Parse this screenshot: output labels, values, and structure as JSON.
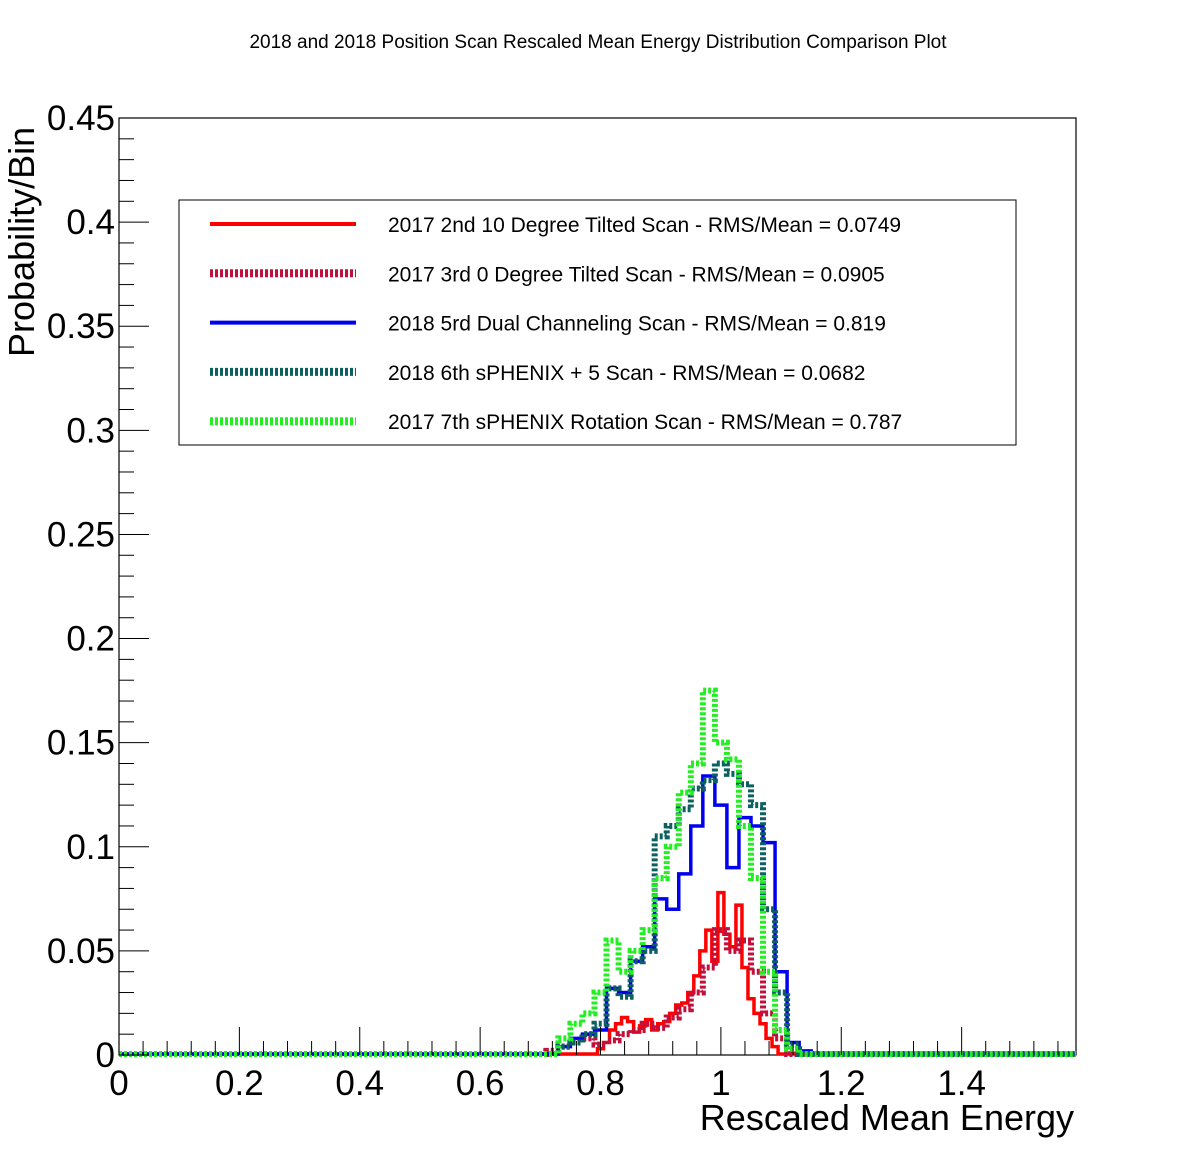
{
  "chart_data": {
    "type": "line",
    "title": "2018 and 2018 Position Scan Rescaled Mean Energy Distribution Comparison Plot",
    "xlabel": "Rescaled Mean Energy",
    "ylabel": "Probability/Bin",
    "xlim": [
      0,
      1.59
    ],
    "ylim": [
      0,
      0.45
    ],
    "xticks": [
      "0",
      "0.2",
      "0.4",
      "0.6",
      "0.8",
      "1",
      "1.2",
      "1.4"
    ],
    "yticks": [
      "0",
      "0.05",
      "0.1",
      "0.15",
      "0.2",
      "0.25",
      "0.3",
      "0.35",
      "0.4",
      "0.45"
    ],
    "grid": false,
    "legend_position": "top",
    "series": [
      {
        "name": "2017 2nd 10 Degree Tilted Scan - RMS/Mean = 0.0749",
        "color": "#ff0000",
        "style": "solid",
        "x": [
          0.8,
          0.81,
          0.82,
          0.83,
          0.84,
          0.85,
          0.86,
          0.87,
          0.88,
          0.89,
          0.9,
          0.91,
          0.92,
          0.93,
          0.94,
          0.95,
          0.96,
          0.97,
          0.98,
          0.99,
          1.0,
          1.01,
          1.02,
          1.03,
          1.04,
          1.05,
          1.06,
          1.07,
          1.08,
          1.09
        ],
        "y": [
          0.003,
          0.006,
          0.012,
          0.015,
          0.018,
          0.016,
          0.011,
          0.014,
          0.017,
          0.012,
          0.015,
          0.016,
          0.02,
          0.024,
          0.025,
          0.03,
          0.038,
          0.05,
          0.06,
          0.045,
          0.078,
          0.058,
          0.052,
          0.072,
          0.042,
          0.027,
          0.02,
          0.015,
          0.008,
          0.004
        ]
      },
      {
        "name": "2017 3rd 0 Degree Tilted Scan - RMS/Mean = 0.0905",
        "color": "#c0103c",
        "style": "dotted",
        "x": [
          0.72,
          0.74,
          0.76,
          0.78,
          0.8,
          0.82,
          0.84,
          0.86,
          0.88,
          0.9,
          0.92,
          0.94,
          0.96,
          0.98,
          1.0,
          1.02,
          1.04,
          1.06,
          1.08,
          1.1
        ],
        "y": [
          0.002,
          0.004,
          0.006,
          0.008,
          0.005,
          0.007,
          0.01,
          0.012,
          0.015,
          0.013,
          0.018,
          0.022,
          0.03,
          0.042,
          0.06,
          0.05,
          0.055,
          0.04,
          0.02,
          0.008
        ]
      },
      {
        "name": "2018 5rd Dual Channeling Scan - RMS/Mean = 0.819",
        "color": "#0000ee",
        "style": "solid",
        "x": [
          0.74,
          0.76,
          0.78,
          0.8,
          0.82,
          0.84,
          0.86,
          0.88,
          0.9,
          0.92,
          0.94,
          0.96,
          0.98,
          1.0,
          1.02,
          1.04,
          1.06,
          1.08,
          1.1,
          1.12,
          1.14
        ],
        "y": [
          0.004,
          0.008,
          0.01,
          0.012,
          0.032,
          0.03,
          0.045,
          0.052,
          0.075,
          0.07,
          0.087,
          0.11,
          0.134,
          0.12,
          0.09,
          0.114,
          0.11,
          0.102,
          0.04,
          0.006,
          0.002
        ]
      },
      {
        "name": "2018 6th sPHENIX + 5 Scan - RMS/Mean = 0.0682",
        "color": "#0d6060",
        "style": "dotted",
        "x": [
          0.74,
          0.76,
          0.78,
          0.8,
          0.82,
          0.84,
          0.86,
          0.88,
          0.9,
          0.92,
          0.94,
          0.96,
          0.98,
          1.0,
          1.02,
          1.04,
          1.06,
          1.08,
          1.1,
          1.12
        ],
        "y": [
          0.004,
          0.006,
          0.01,
          0.015,
          0.032,
          0.028,
          0.045,
          0.05,
          0.105,
          0.11,
          0.118,
          0.128,
          0.132,
          0.14,
          0.135,
          0.13,
          0.12,
          0.07,
          0.03,
          0.005
        ]
      },
      {
        "name": "2017 7th sPHENIX Rotation Scan - RMS/Mean = 0.787",
        "color": "#22ee22",
        "style": "dotted",
        "x": [
          0.74,
          0.76,
          0.78,
          0.8,
          0.82,
          0.84,
          0.86,
          0.88,
          0.9,
          0.92,
          0.94,
          0.96,
          0.98,
          1.0,
          1.02,
          1.04,
          1.06,
          1.08,
          1.1,
          1.12
        ],
        "y": [
          0.008,
          0.015,
          0.02,
          0.03,
          0.055,
          0.04,
          0.05,
          0.06,
          0.085,
          0.1,
          0.126,
          0.14,
          0.175,
          0.15,
          0.142,
          0.11,
          0.085,
          0.04,
          0.012,
          0.003
        ]
      }
    ]
  }
}
